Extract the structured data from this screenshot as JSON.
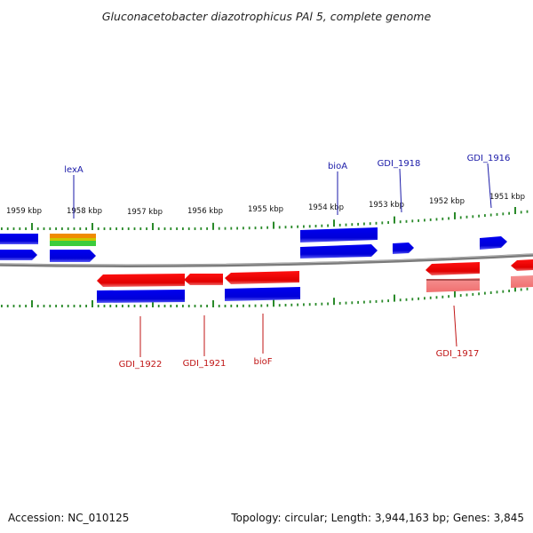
{
  "title": "Gluconacetobacter diazotrophicus PAl 5, complete genome",
  "footer": {
    "accession": "Accession: NC_010125",
    "topology": "Topology: circular; Length: 3,944,163 bp; Genes: 3,845"
  },
  "colors": {
    "forward_gene": "#0000e6",
    "reverse_gene": "#e60000",
    "reverse_pseudo": "#f07878",
    "tick": "#2a8a2a",
    "backbone": "#7a7a7a",
    "label_forward": "#1a1aa8",
    "label_reverse": "#c01515"
  },
  "kbp_labels": [
    "1959 kbp",
    "1958 kbp",
    "1957 kbp",
    "1956 kbp",
    "1955 kbp",
    "1954 kbp",
    "1953 kbp",
    "1952 kbp",
    "1951 kbp"
  ],
  "gene_labels_forward": [
    "lexA",
    "bioA",
    "GDI_1918",
    "GDI_1916"
  ],
  "gene_labels_reverse": [
    "GDI_1922",
    "GDI_1921",
    "bioF",
    "GDI_1917"
  ]
}
